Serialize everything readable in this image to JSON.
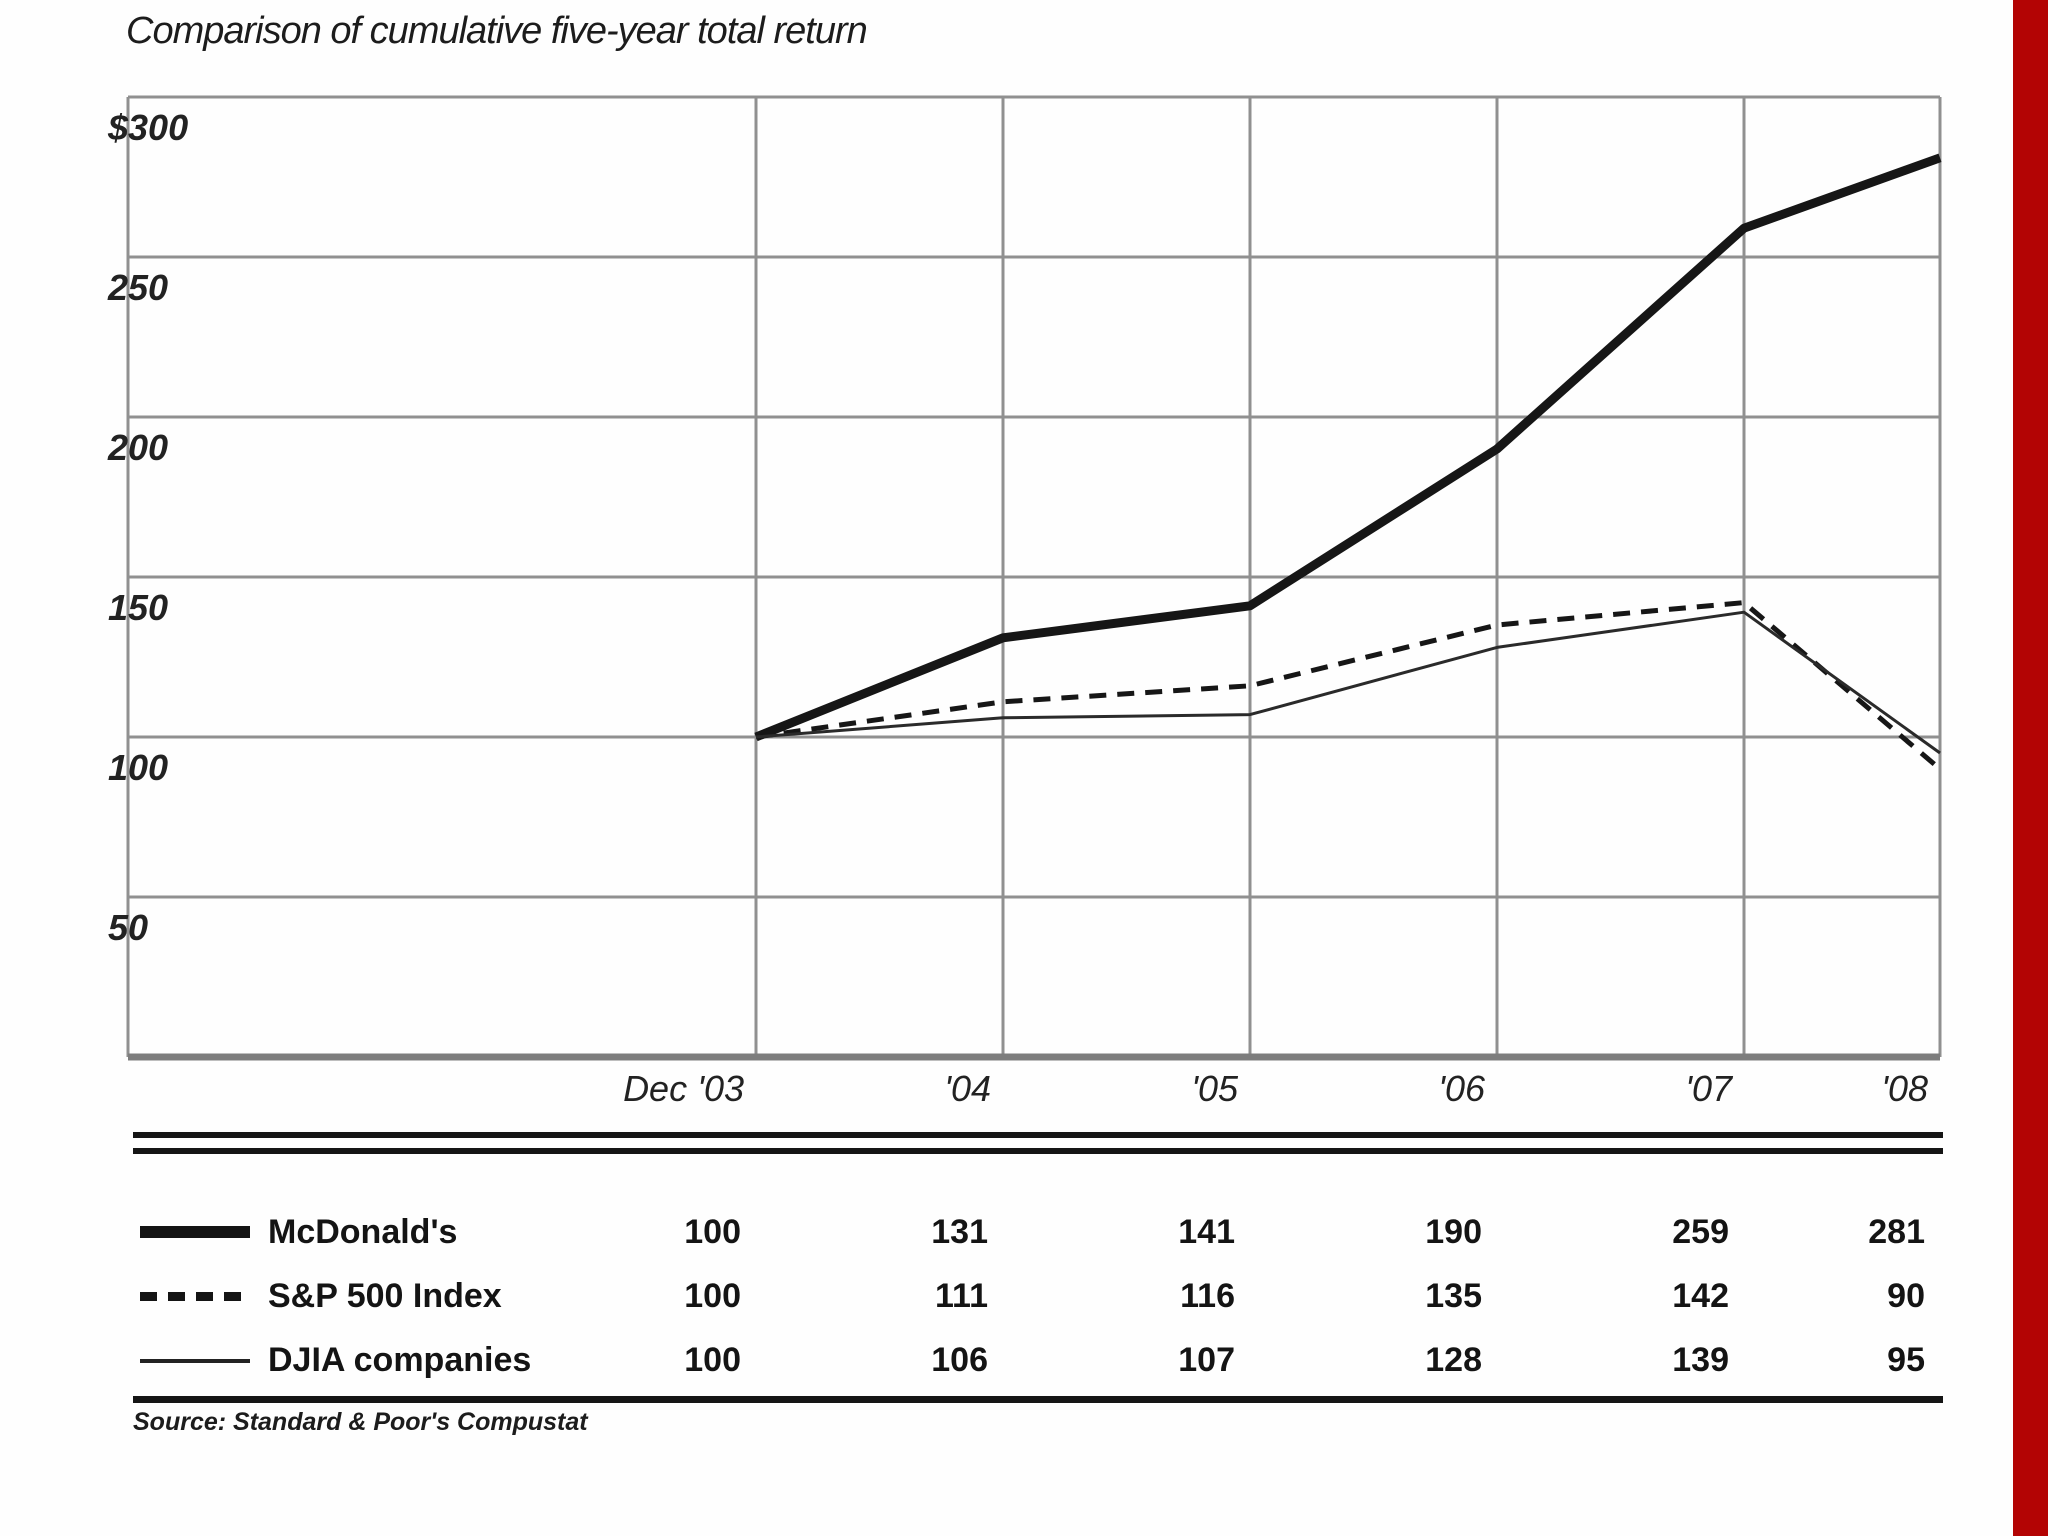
{
  "page": {
    "title": "Comparison of cumulative five-year total return",
    "source": "Source: Standard & Poor's Compustat",
    "accent_bar_color": "#b30404"
  },
  "chart_data": {
    "type": "line",
    "title": "Comparison of cumulative five-year total return",
    "xlabel": "",
    "ylabel": "",
    "ylim": [
      0,
      300
    ],
    "grid": true,
    "legend_position": "bottom-table",
    "categories": [
      "Dec '03",
      "'04",
      "'05",
      "'06",
      "'07",
      "'08"
    ],
    "y_ticks": [
      "$300",
      "250",
      "200",
      "150",
      "100",
      "50"
    ],
    "y_tick_values": [
      300,
      250,
      200,
      150,
      100,
      50
    ],
    "series": [
      {
        "name": "McDonald's",
        "style": "thick-solid",
        "values": [
          100,
          131,
          141,
          190,
          259,
          281
        ]
      },
      {
        "name": "S&P 500 Index",
        "style": "dashed",
        "values": [
          100,
          111,
          116,
          135,
          142,
          90
        ]
      },
      {
        "name": "DJIA companies",
        "style": "thin-solid",
        "values": [
          100,
          106,
          107,
          128,
          139,
          95
        ]
      }
    ],
    "source": "Source: Standard & Poor's Compustat"
  }
}
